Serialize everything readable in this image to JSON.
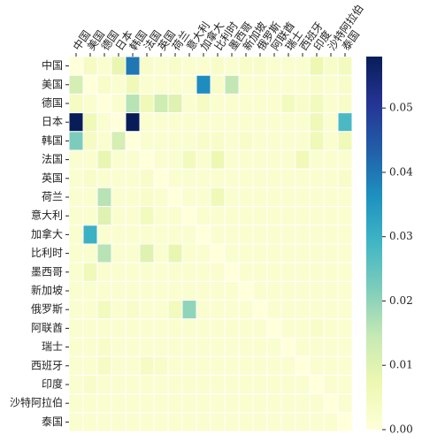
{
  "chart_data": {
    "type": "heatmap",
    "categories": [
      "中国",
      "美国",
      "德国",
      "日本",
      "韩国",
      "法国",
      "英国",
      "荷兰",
      "意大利",
      "加拿大",
      "比利时",
      "墨西哥",
      "新加坡",
      "俄罗斯",
      "阿联酋",
      "瑞士",
      "西班牙",
      "印度",
      "沙特阿拉伯",
      "泰国"
    ],
    "values": [
      [
        0,
        0.004,
        0.002,
        0.008,
        0.04,
        0.003,
        0.002,
        0.003,
        0.002,
        0.002,
        0.003,
        0.002,
        0.003,
        0.003,
        0.002,
        0.002,
        0.002,
        0.007,
        0.003,
        0.005
      ],
      [
        0.012,
        0,
        0.003,
        0.002,
        0.006,
        0.002,
        0.002,
        0.002,
        0.002,
        0.037,
        0.003,
        0.015,
        0.002,
        0.002,
        0.002,
        0.002,
        0.002,
        0.003,
        0.002,
        0.003
      ],
      [
        0.004,
        0.002,
        0,
        0.002,
        0.016,
        0.006,
        0.013,
        0.01,
        0.002,
        0.004,
        0.002,
        0.002,
        0.002,
        0.002,
        0.002,
        0.005,
        0.003,
        0.005,
        0.002,
        0.003
      ],
      [
        0.058,
        0.006,
        0.002,
        0,
        0.058,
        0.002,
        0.002,
        0.002,
        0.002,
        0.002,
        0.002,
        0.002,
        0.002,
        0.002,
        0.002,
        0.002,
        0.002,
        0.006,
        0.002,
        0.028
      ],
      [
        0.022,
        0.004,
        0.002,
        0.012,
        0,
        0.002,
        0.002,
        0.002,
        0.002,
        0.003,
        0.003,
        0.002,
        0.003,
        0.002,
        0.002,
        0.002,
        0.002,
        0.006,
        0.002,
        0.006
      ],
      [
        0.002,
        0.002,
        0.008,
        0.002,
        0.002,
        0,
        0.002,
        0.002,
        0.005,
        0.002,
        0.007,
        0.002,
        0.002,
        0.002,
        0.002,
        0.002,
        0.006,
        0.002,
        0.002,
        0.002
      ],
      [
        0.002,
        0.003,
        0.002,
        0.002,
        0.002,
        0.003,
        0,
        0.002,
        0.002,
        0.002,
        0.002,
        0.002,
        0.002,
        0.002,
        0.002,
        0.002,
        0.002,
        0.002,
        0.002,
        0.003
      ],
      [
        0.002,
        0.002,
        0.016,
        0.002,
        0.002,
        0.003,
        0.002,
        0,
        0.002,
        0.002,
        0.006,
        0.002,
        0.002,
        0.002,
        0.002,
        0.002,
        0.002,
        0.002,
        0.002,
        0.002
      ],
      [
        0.002,
        0.002,
        0.01,
        0.002,
        0.002,
        0.005,
        0.002,
        0.002,
        0,
        0.002,
        0.002,
        0.002,
        0.002,
        0.002,
        0.002,
        0.002,
        0.002,
        0.002,
        0.002,
        0.002
      ],
      [
        0.002,
        0.03,
        0.002,
        0.002,
        0.002,
        0.002,
        0.002,
        0.002,
        0.002,
        0,
        0.002,
        0.002,
        0.002,
        0.002,
        0.002,
        0.002,
        0.002,
        0.002,
        0.002,
        0.002
      ],
      [
        0.002,
        0.002,
        0.016,
        0.002,
        0.002,
        0.01,
        0.002,
        0.008,
        0.002,
        0.002,
        0,
        0.002,
        0.002,
        0.002,
        0.002,
        0.002,
        0.002,
        0.002,
        0.002,
        0.002
      ],
      [
        0.002,
        0.006,
        0.002,
        0.002,
        0.002,
        0.002,
        0.002,
        0.002,
        0.002,
        0.002,
        0.002,
        0,
        0.002,
        0.002,
        0.002,
        0.002,
        0.002,
        0.002,
        0.002,
        0.002
      ],
      [
        0.002,
        0.002,
        0.002,
        0.002,
        0.002,
        0.002,
        0.002,
        0.002,
        0.002,
        0.002,
        0.002,
        0.002,
        0,
        0.002,
        0.002,
        0.002,
        0.002,
        0.002,
        0.002,
        0.002
      ],
      [
        0.002,
        0.002,
        0.005,
        0.002,
        0.003,
        0.002,
        0.002,
        0.005,
        0.02,
        0.002,
        0.002,
        0.002,
        0.002,
        0,
        0.002,
        0.002,
        0.002,
        0.002,
        0.002,
        0.002
      ],
      [
        0.002,
        0.002,
        0.002,
        0.002,
        0.002,
        0.002,
        0.002,
        0.002,
        0.002,
        0.002,
        0.002,
        0.002,
        0.002,
        0.002,
        0,
        0.002,
        0.002,
        0.003,
        0.002,
        0.002
      ],
      [
        0.002,
        0.002,
        0.003,
        0.002,
        0.002,
        0.002,
        0.002,
        0.002,
        0.002,
        0.002,
        0.002,
        0.002,
        0.002,
        0.002,
        0.002,
        0,
        0.002,
        0.002,
        0.002,
        0.002
      ],
      [
        0.002,
        0.002,
        0.004,
        0.002,
        0.002,
        0.004,
        0.003,
        0.002,
        0.002,
        0.002,
        0.002,
        0.002,
        0.002,
        0.002,
        0.002,
        0.002,
        0,
        0.002,
        0.002,
        0.002
      ],
      [
        0.002,
        0.003,
        0.002,
        0.002,
        0.002,
        0.002,
        0.002,
        0.002,
        0.002,
        0.002,
        0.002,
        0.002,
        0.002,
        0.002,
        0.002,
        0.002,
        0.002,
        0,
        0.002,
        0.002
      ],
      [
        0.002,
        0.002,
        0.002,
        0.002,
        0.002,
        0.002,
        0.002,
        0.002,
        0.002,
        0.002,
        0.002,
        0.002,
        0.002,
        0.002,
        0.002,
        0.002,
        0.002,
        0.002,
        0,
        0.002
      ],
      [
        0.002,
        0.002,
        0.002,
        0.002,
        0.002,
        0.002,
        0.002,
        0.002,
        0.002,
        0.002,
        0.002,
        0.002,
        0.002,
        0.002,
        0.002,
        0.002,
        0.002,
        0.002,
        0.002,
        0
      ]
    ],
    "colormap": "YlGnBu",
    "clim": [
      0,
      0.058
    ],
    "cticks": [
      {
        "value": 0,
        "label": "0.00"
      },
      {
        "value": 0.01,
        "label": "0.01"
      },
      {
        "value": 0.02,
        "label": "0.02"
      },
      {
        "value": 0.03,
        "label": "0.03"
      },
      {
        "value": 0.04,
        "label": "0.04"
      },
      {
        "value": 0.05,
        "label": "0.05"
      }
    ]
  }
}
